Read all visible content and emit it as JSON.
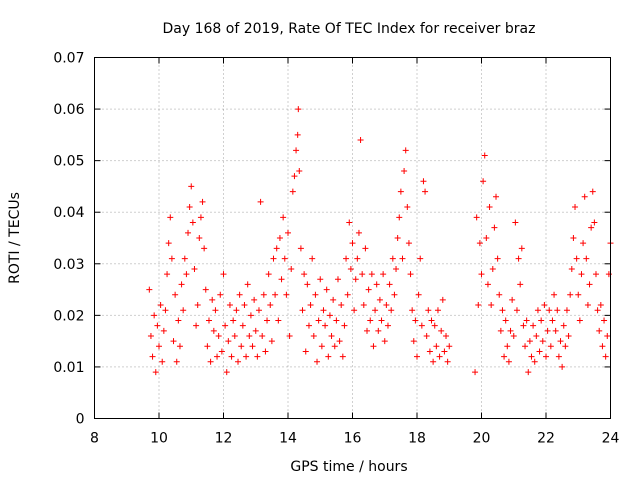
{
  "chart_data": {
    "type": "scatter",
    "title": "Day 168 of 2019, Rate Of TEC Index for receiver braz",
    "xlabel": "GPS time / hours",
    "ylabel": "ROTI / TECUs",
    "xlim": [
      8,
      24
    ],
    "ylim": [
      0,
      0.07
    ],
    "xticks": [
      8,
      10,
      12,
      14,
      16,
      18,
      20,
      22,
      24
    ],
    "yticks": [
      0,
      0.01,
      0.02,
      0.03,
      0.04,
      0.05,
      0.06,
      0.07
    ],
    "xtick_labels": [
      "8",
      "10",
      "12",
      "14",
      "16",
      "18",
      "20",
      "22",
      "24"
    ],
    "ytick_labels": [
      "0",
      "0.01",
      "0.02",
      "0.03",
      "0.04",
      "0.05",
      "0.06",
      "0.07"
    ],
    "grid": true,
    "marker": "+",
    "color": "#ff0000",
    "series": [
      {
        "name": "ROTI",
        "points": [
          [
            9.7,
            0.025
          ],
          [
            9.75,
            0.016
          ],
          [
            9.8,
            0.012
          ],
          [
            9.85,
            0.02
          ],
          [
            9.9,
            0.009
          ],
          [
            9.95,
            0.018
          ],
          [
            10.0,
            0.014
          ],
          [
            10.05,
            0.022
          ],
          [
            10.1,
            0.011
          ],
          [
            10.15,
            0.017
          ],
          [
            10.2,
            0.021
          ],
          [
            10.25,
            0.028
          ],
          [
            10.3,
            0.034
          ],
          [
            10.35,
            0.039
          ],
          [
            10.4,
            0.031
          ],
          [
            10.45,
            0.015
          ],
          [
            10.5,
            0.024
          ],
          [
            10.55,
            0.011
          ],
          [
            10.6,
            0.019
          ],
          [
            10.65,
            0.014
          ],
          [
            10.7,
            0.026
          ],
          [
            10.75,
            0.021
          ],
          [
            10.8,
            0.031
          ],
          [
            10.85,
            0.028
          ],
          [
            10.9,
            0.036
          ],
          [
            10.95,
            0.041
          ],
          [
            11.0,
            0.045
          ],
          [
            11.05,
            0.038
          ],
          [
            11.1,
            0.029
          ],
          [
            11.15,
            0.018
          ],
          [
            11.2,
            0.022
          ],
          [
            11.25,
            0.035
          ],
          [
            11.3,
            0.039
          ],
          [
            11.35,
            0.042
          ],
          [
            11.4,
            0.033
          ],
          [
            11.45,
            0.025
          ],
          [
            11.5,
            0.014
          ],
          [
            11.55,
            0.019
          ],
          [
            11.6,
            0.011
          ],
          [
            11.65,
            0.023
          ],
          [
            11.7,
            0.017
          ],
          [
            11.75,
            0.021
          ],
          [
            11.8,
            0.012
          ],
          [
            11.85,
            0.016
          ],
          [
            11.9,
            0.024
          ],
          [
            11.95,
            0.013
          ],
          [
            12.0,
            0.028
          ],
          [
            12.05,
            0.018
          ],
          [
            12.1,
            0.009
          ],
          [
            12.15,
            0.015
          ],
          [
            12.2,
            0.022
          ],
          [
            12.25,
            0.012
          ],
          [
            12.3,
            0.019
          ],
          [
            12.35,
            0.016
          ],
          [
            12.4,
            0.021
          ],
          [
            12.45,
            0.011
          ],
          [
            12.5,
            0.024
          ],
          [
            12.55,
            0.014
          ],
          [
            12.6,
            0.018
          ],
          [
            12.65,
            0.022
          ],
          [
            12.7,
            0.012
          ],
          [
            12.75,
            0.026
          ],
          [
            12.8,
            0.016
          ],
          [
            12.85,
            0.02
          ],
          [
            12.9,
            0.014
          ],
          [
            12.95,
            0.023
          ],
          [
            13.0,
            0.017
          ],
          [
            13.05,
            0.012
          ],
          [
            13.1,
            0.021
          ],
          [
            13.15,
            0.042
          ],
          [
            13.2,
            0.016
          ],
          [
            13.25,
            0.024
          ],
          [
            13.3,
            0.013
          ],
          [
            13.35,
            0.019
          ],
          [
            13.4,
            0.028
          ],
          [
            13.45,
            0.022
          ],
          [
            13.5,
            0.015
          ],
          [
            13.55,
            0.031
          ],
          [
            13.6,
            0.024
          ],
          [
            13.65,
            0.033
          ],
          [
            13.7,
            0.019
          ],
          [
            13.75,
            0.035
          ],
          [
            13.8,
            0.027
          ],
          [
            13.85,
            0.039
          ],
          [
            13.9,
            0.031
          ],
          [
            13.95,
            0.024
          ],
          [
            14.0,
            0.036
          ],
          [
            14.05,
            0.016
          ],
          [
            14.1,
            0.029
          ],
          [
            14.15,
            0.044
          ],
          [
            14.2,
            0.047
          ],
          [
            14.25,
            0.052
          ],
          [
            14.3,
            0.055
          ],
          [
            14.32,
            0.06
          ],
          [
            14.35,
            0.048
          ],
          [
            14.4,
            0.033
          ],
          [
            14.45,
            0.021
          ],
          [
            14.5,
            0.028
          ],
          [
            14.55,
            0.013
          ],
          [
            14.6,
            0.026
          ],
          [
            14.65,
            0.018
          ],
          [
            14.7,
            0.022
          ],
          [
            14.75,
            0.031
          ],
          [
            14.8,
            0.016
          ],
          [
            14.85,
            0.024
          ],
          [
            14.9,
            0.011
          ],
          [
            14.95,
            0.019
          ],
          [
            15.0,
            0.027
          ],
          [
            15.05,
            0.014
          ],
          [
            15.1,
            0.021
          ],
          [
            15.15,
            0.018
          ],
          [
            15.2,
            0.025
          ],
          [
            15.25,
            0.012
          ],
          [
            15.3,
            0.02
          ],
          [
            15.35,
            0.016
          ],
          [
            15.4,
            0.023
          ],
          [
            15.45,
            0.014
          ],
          [
            15.5,
            0.019
          ],
          [
            15.55,
            0.027
          ],
          [
            15.6,
            0.015
          ],
          [
            15.65,
            0.022
          ],
          [
            15.7,
            0.012
          ],
          [
            15.75,
            0.018
          ],
          [
            15.8,
            0.031
          ],
          [
            15.85,
            0.024
          ],
          [
            15.9,
            0.038
          ],
          [
            15.95,
            0.029
          ],
          [
            16.0,
            0.034
          ],
          [
            16.05,
            0.021
          ],
          [
            16.1,
            0.027
          ],
          [
            16.15,
            0.031
          ],
          [
            16.2,
            0.036
          ],
          [
            16.25,
            0.054
          ],
          [
            16.3,
            0.028
          ],
          [
            16.35,
            0.022
          ],
          [
            16.4,
            0.033
          ],
          [
            16.45,
            0.017
          ],
          [
            16.5,
            0.025
          ],
          [
            16.55,
            0.019
          ],
          [
            16.6,
            0.028
          ],
          [
            16.65,
            0.014
          ],
          [
            16.7,
            0.021
          ],
          [
            16.75,
            0.026
          ],
          [
            16.8,
            0.017
          ],
          [
            16.85,
            0.023
          ],
          [
            16.9,
            0.019
          ],
          [
            16.95,
            0.028
          ],
          [
            17.0,
            0.015
          ],
          [
            17.05,
            0.022
          ],
          [
            17.1,
            0.018
          ],
          [
            17.15,
            0.026
          ],
          [
            17.2,
            0.021
          ],
          [
            17.25,
            0.031
          ],
          [
            17.3,
            0.024
          ],
          [
            17.35,
            0.029
          ],
          [
            17.4,
            0.035
          ],
          [
            17.45,
            0.039
          ],
          [
            17.5,
            0.044
          ],
          [
            17.55,
            0.031
          ],
          [
            17.6,
            0.048
          ],
          [
            17.65,
            0.052
          ],
          [
            17.7,
            0.041
          ],
          [
            17.75,
            0.034
          ],
          [
            17.8,
            0.028
          ],
          [
            17.85,
            0.021
          ],
          [
            17.9,
            0.015
          ],
          [
            17.95,
            0.019
          ],
          [
            18.0,
            0.012
          ],
          [
            18.05,
            0.024
          ],
          [
            18.1,
            0.031
          ],
          [
            18.15,
            0.018
          ],
          [
            18.2,
            0.046
          ],
          [
            18.25,
            0.044
          ],
          [
            18.3,
            0.016
          ],
          [
            18.35,
            0.021
          ],
          [
            18.4,
            0.013
          ],
          [
            18.45,
            0.019
          ],
          [
            18.5,
            0.011
          ],
          [
            18.55,
            0.018
          ],
          [
            18.6,
            0.014
          ],
          [
            18.65,
            0.021
          ],
          [
            18.7,
            0.012
          ],
          [
            18.75,
            0.017
          ],
          [
            18.8,
            0.023
          ],
          [
            18.85,
            0.013
          ],
          [
            18.9,
            0.016
          ],
          [
            18.95,
            0.011
          ],
          [
            19.0,
            0.014
          ],
          [
            19.8,
            0.009
          ],
          [
            19.85,
            0.039
          ],
          [
            19.9,
            0.022
          ],
          [
            19.95,
            0.034
          ],
          [
            20.0,
            0.028
          ],
          [
            20.05,
            0.046
          ],
          [
            20.1,
            0.051
          ],
          [
            20.15,
            0.035
          ],
          [
            20.2,
            0.026
          ],
          [
            20.25,
            0.041
          ],
          [
            20.3,
            0.022
          ],
          [
            20.35,
            0.029
          ],
          [
            20.4,
            0.037
          ],
          [
            20.45,
            0.043
          ],
          [
            20.5,
            0.031
          ],
          [
            20.55,
            0.024
          ],
          [
            20.6,
            0.017
          ],
          [
            20.65,
            0.021
          ],
          [
            20.7,
            0.012
          ],
          [
            20.75,
            0.019
          ],
          [
            20.8,
            0.014
          ],
          [
            20.85,
            0.011
          ],
          [
            20.9,
            0.017
          ],
          [
            20.95,
            0.023
          ],
          [
            21.0,
            0.016
          ],
          [
            21.05,
            0.038
          ],
          [
            21.1,
            0.021
          ],
          [
            21.15,
            0.031
          ],
          [
            21.2,
            0.026
          ],
          [
            21.25,
            0.033
          ],
          [
            21.3,
            0.018
          ],
          [
            21.35,
            0.014
          ],
          [
            21.4,
            0.019
          ],
          [
            21.45,
            0.009
          ],
          [
            21.5,
            0.015
          ],
          [
            21.55,
            0.012
          ],
          [
            21.6,
            0.018
          ],
          [
            21.65,
            0.011
          ],
          [
            21.7,
            0.016
          ],
          [
            21.75,
            0.021
          ],
          [
            21.8,
            0.013
          ],
          [
            21.85,
            0.019
          ],
          [
            21.9,
            0.015
          ],
          [
            21.95,
            0.022
          ],
          [
            22.0,
            0.012
          ],
          [
            22.05,
            0.017
          ],
          [
            22.1,
            0.021
          ],
          [
            22.15,
            0.014
          ],
          [
            22.2,
            0.019
          ],
          [
            22.25,
            0.024
          ],
          [
            22.3,
            0.017
          ],
          [
            22.35,
            0.021
          ],
          [
            22.4,
            0.012
          ],
          [
            22.45,
            0.015
          ],
          [
            22.5,
            0.01
          ],
          [
            22.55,
            0.018
          ],
          [
            22.6,
            0.014
          ],
          [
            22.65,
            0.021
          ],
          [
            22.7,
            0.016
          ],
          [
            22.75,
            0.024
          ],
          [
            22.8,
            0.029
          ],
          [
            22.85,
            0.035
          ],
          [
            22.9,
            0.041
          ],
          [
            22.95,
            0.031
          ],
          [
            23.0,
            0.024
          ],
          [
            23.05,
            0.019
          ],
          [
            23.1,
            0.028
          ],
          [
            23.15,
            0.034
          ],
          [
            23.2,
            0.043
          ],
          [
            23.25,
            0.031
          ],
          [
            23.3,
            0.022
          ],
          [
            23.35,
            0.026
          ],
          [
            23.4,
            0.037
          ],
          [
            23.45,
            0.044
          ],
          [
            23.5,
            0.038
          ],
          [
            23.55,
            0.028
          ],
          [
            23.6,
            0.021
          ],
          [
            23.65,
            0.017
          ],
          [
            23.7,
            0.022
          ],
          [
            23.75,
            0.014
          ],
          [
            23.8,
            0.019
          ],
          [
            23.85,
            0.012
          ],
          [
            23.9,
            0.016
          ],
          [
            23.95,
            0.028
          ],
          [
            24.0,
            0.034
          ]
        ]
      }
    ]
  }
}
